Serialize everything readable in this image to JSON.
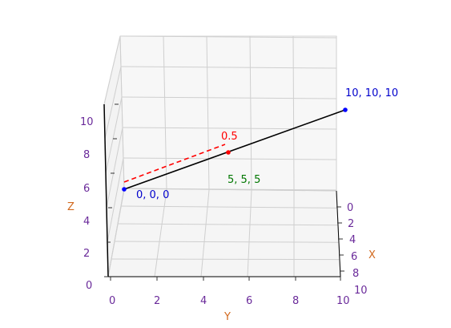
{
  "chart_data": {
    "type": "line3d",
    "title": "",
    "xlabel": "X",
    "ylabel": "Y",
    "zlabel": "Z",
    "xlim": [
      0,
      10
    ],
    "ylim": [
      0,
      10
    ],
    "zlim": [
      0,
      10
    ],
    "x_ticks": [
      "0",
      "2",
      "4",
      "6",
      "8"
    ],
    "y_ticks": [
      "0",
      "2",
      "4",
      "6",
      "8",
      "10"
    ],
    "z_ticks": [
      "0",
      "2",
      "4",
      "6",
      "8",
      "10"
    ],
    "extra_x_tick_label": "10",
    "grid": true,
    "series": [
      {
        "kind": "segment",
        "color": "#000000",
        "style": "solid",
        "points": [
          [
            0,
            0,
            0
          ],
          [
            10,
            10,
            10
          ]
        ]
      },
      {
        "kind": "segment",
        "color": "#ff0000",
        "style": "dashed",
        "points": [
          [
            0,
            0,
            0
          ],
          [
            5,
            5,
            5
          ]
        ]
      }
    ],
    "points": [
      {
        "coords": [
          0,
          0,
          0
        ],
        "color": "#0000ff",
        "label": "0, 0, 0",
        "label_color": "#0000cc"
      },
      {
        "coords": [
          10,
          10,
          10
        ],
        "color": "#0000ff",
        "label": "10, 10, 10",
        "label_color": "#0000cc"
      },
      {
        "coords": [
          5,
          5,
          5
        ],
        "color": "#ff0000",
        "label": "0.5",
        "label_color": "#ff0000"
      }
    ],
    "annotations": [
      {
        "text": "5, 5, 5",
        "color": "#007700"
      }
    ],
    "colors": {
      "tick_labels": "#6a2a9a",
      "axis_labels": "#d2691e"
    }
  }
}
